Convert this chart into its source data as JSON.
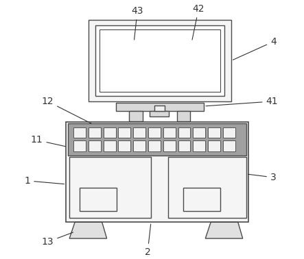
{
  "bg_color": "#ffffff",
  "line_color": "#4a4a4a",
  "light_fill": "#f8f8f8",
  "gray_fill": "#d0d0d0",
  "dark_strip": "#888888",
  "cell_fill": "#f0f0f0",
  "figsize": [
    4.43,
    3.78
  ],
  "dpi": 100
}
